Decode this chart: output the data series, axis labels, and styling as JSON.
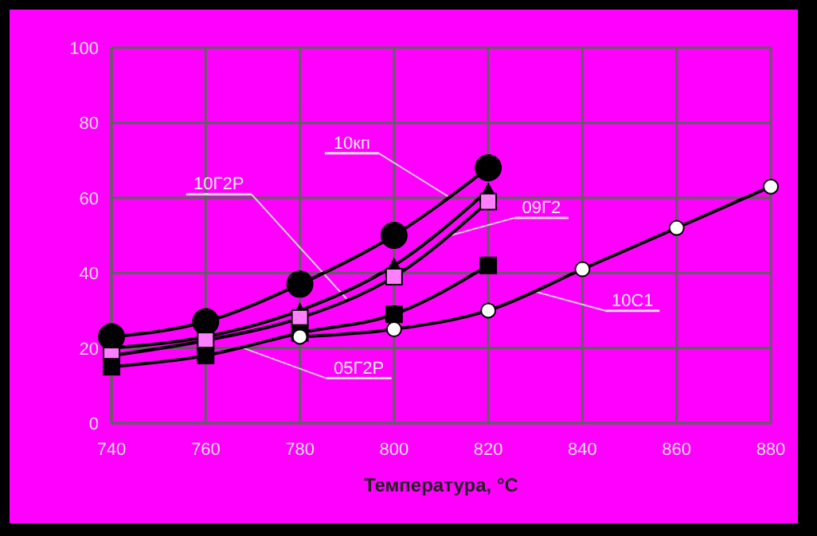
{
  "chart_data": {
    "type": "line",
    "xlabel": "Температура, °С",
    "x": [
      740,
      760,
      780,
      800,
      820
    ],
    "xlim": [
      740,
      880
    ],
    "xticks": [
      740,
      760,
      780,
      800,
      820,
      840,
      860,
      880
    ],
    "ylim": [
      0,
      100
    ],
    "yticks": [
      0,
      20,
      40,
      60,
      80,
      100
    ],
    "grid": true,
    "series": [
      {
        "color": "#000000",
        "marker": "circle",
        "values": [
          23,
          27,
          37,
          50,
          68
        ]
      },
      {
        "color": "#000000",
        "marker": "triangle",
        "values": [
          20,
          23,
          30,
          42,
          62
        ]
      },
      {
        "color": "#000000",
        "marker": "square",
        "values": [
          18,
          22,
          28,
          39,
          59
        ]
      },
      {
        "color": "#000000",
        "marker": "square",
        "values": [
          15,
          18,
          24,
          29,
          42
        ]
      },
      {
        "color": "#000000",
        "marker": "circle",
        "x": [
          780,
          800,
          820,
          840,
          860,
          880
        ],
        "values": [
          23,
          25,
          30,
          41,
          52,
          63
        ]
      }
    ],
    "annotations": [
      {
        "text": "10кп",
        "x": 812,
        "y": 60
      },
      {
        "text": "10Г2Р",
        "x": 790,
        "y": 33
      },
      {
        "text": "09Г2",
        "x": 812,
        "y": 50
      },
      {
        "text": "10С1",
        "x": 830,
        "y": 35
      },
      {
        "text": "05Г2Р",
        "x": 768,
        "y": 20
      }
    ]
  }
}
